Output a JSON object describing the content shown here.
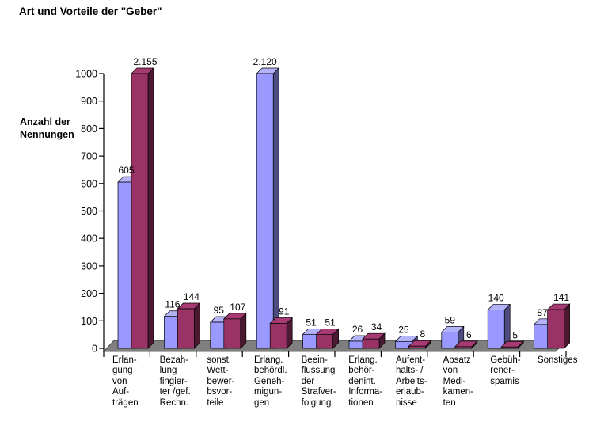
{
  "title": "Art und Vorteile der \"Geber\"",
  "chart_data": {
    "type": "bar",
    "style": "3d-clustered-column",
    "title": "Art und Vorteile der \"Geber\"",
    "ylabel": "Anzahl der Nennungen",
    "ylabel_lines": [
      "Anzahl der",
      "Nennungen"
    ],
    "xlabel": "",
    "ylim": [
      0,
      1000
    ],
    "ytick_step": 100,
    "ytick_labels": [
      "0",
      "100",
      "200",
      "300",
      "400",
      "500",
      "600",
      "700",
      "800",
      "900",
      "1000"
    ],
    "grid": false,
    "legend": null,
    "clip_at_ymax": true,
    "categories": [
      "Erlangung von Aufträgen",
      "Bezahlung fingierter /gef. Rechn.",
      "sonst. Wettbewerbsvorteile",
      "Erlang. behördl. Genehmigungen",
      "Beeinflussung der Strafverfolgung",
      "Erlang. behördenint. Informationen",
      "Aufenthalts- / Arbeitserlaubnisse",
      "Absatz von Medikamenten",
      "Gebührenerspamis",
      "Sonstiges"
    ],
    "category_label_lines": [
      [
        "Erlan-",
        "gung",
        "von",
        "Auf-",
        "trägen"
      ],
      [
        "Bezah-",
        "lung",
        "fingier-",
        "ter /gef.",
        "Rechn."
      ],
      [
        "sonst.",
        "Wett-",
        "bewer-",
        "bsvor-",
        "teile"
      ],
      [
        "Erlang.",
        "behördl.",
        "Geneh-",
        "migun-",
        "gen"
      ],
      [
        "Beein-",
        "flussung",
        "der",
        "Strafver-",
        "folgung"
      ],
      [
        "Erlang.",
        "behör-",
        "denint.",
        "Informa-",
        "tionen"
      ],
      [
        "Aufent-",
        "halts- /",
        "Arbeits-",
        "erlaub-",
        "nisse"
      ],
      [
        "Absatz",
        "von",
        "Medi-",
        "kamen-",
        "ten"
      ],
      [
        "Gebüh-",
        "rener-",
        "spamis"
      ],
      [
        "Sonstiges"
      ]
    ],
    "series": [
      {
        "key": "blue",
        "values": [
          605,
          116,
          95,
          2120,
          51,
          26,
          25,
          59,
          140,
          87
        ],
        "value_labels": [
          "605",
          "116",
          "95",
          "2.120",
          "51",
          "26",
          "25",
          "59",
          "140",
          "87"
        ]
      },
      {
        "key": "maroon",
        "values": [
          2155,
          144,
          107,
          91,
          51,
          34,
          8,
          6,
          5,
          141
        ],
        "value_labels": [
          "2.155",
          "144",
          "107",
          "91",
          "51",
          "34",
          "8",
          "6",
          "5",
          "141"
        ]
      }
    ]
  },
  "colors": {
    "blue_front": "#9999FF",
    "blue_side": "#4D4D80",
    "blue_top": "#B3B3FA",
    "maroon_front": "#993366",
    "maroon_side": "#4C1933",
    "maroon_top": "#A53B72",
    "floor": "#7F7F7F",
    "axis": "#000000",
    "background": "#FFFFFF"
  }
}
